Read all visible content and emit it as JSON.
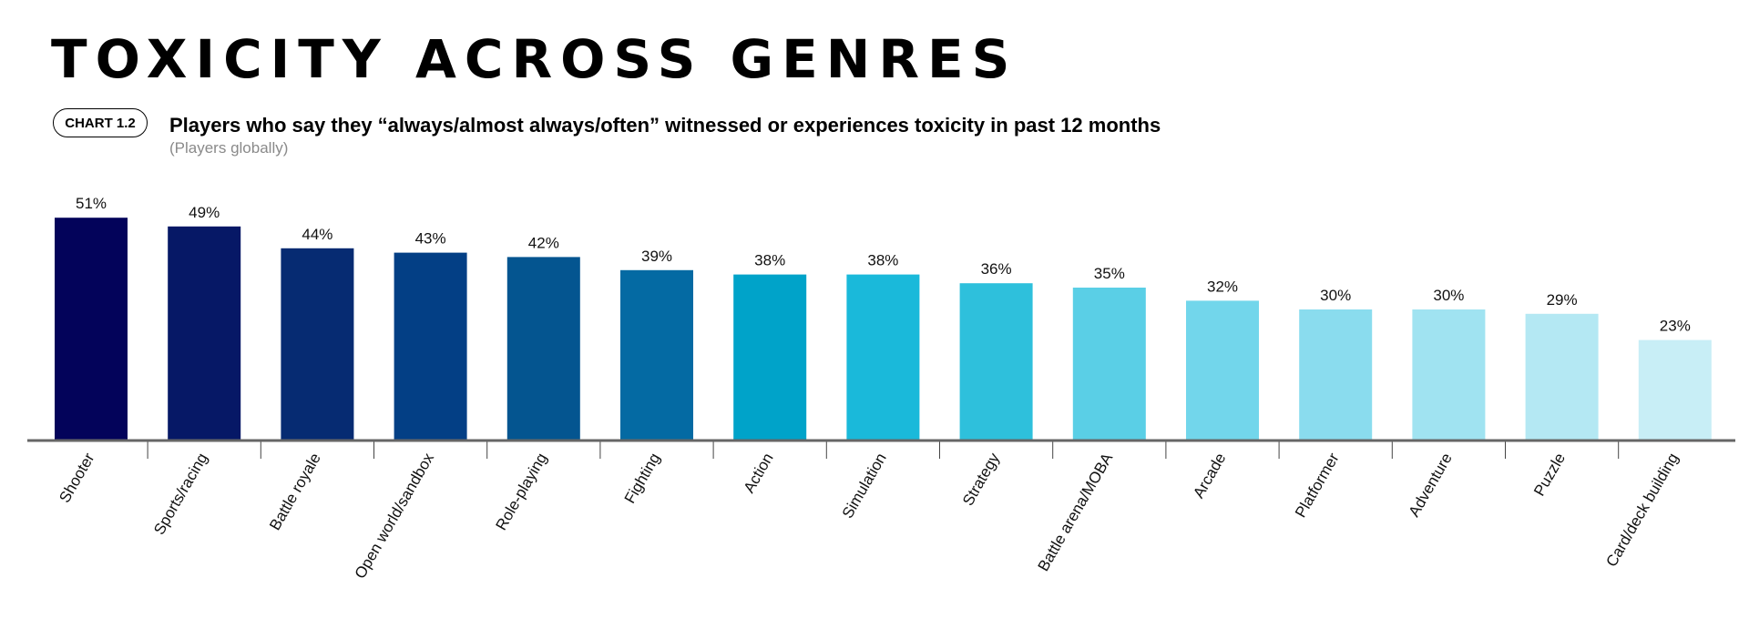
{
  "chart_data": {
    "type": "bar",
    "title": "TOXICITY ACROSS GENRES",
    "badge": "CHART 1.2",
    "subtitle": "Players who say they “always/almost always/often” witnessed or experiences toxicity in past 12 months",
    "note": "(Players globally)",
    "xlabel": "",
    "ylabel": "",
    "ylim": [
      0,
      100
    ],
    "grid": false,
    "categories": [
      "Shooter",
      "Sports/racing",
      "Battle royale",
      "Open world/sandbox",
      "Role-playing",
      "Fighting",
      "Action",
      "Simulation",
      "Strategy",
      "Battle arena/MOBA",
      "Arcade",
      "Platformer",
      "Adventure",
      "Puzzle",
      "Card/deck building"
    ],
    "values": [
      51,
      49,
      44,
      43,
      42,
      39,
      38,
      38,
      36,
      35,
      32,
      30,
      30,
      29,
      23
    ],
    "value_labels": [
      "51%",
      "49%",
      "44%",
      "43%",
      "42%",
      "39%",
      "38%",
      "38%",
      "36%",
      "35%",
      "32%",
      "30%",
      "30%",
      "29%",
      "23%"
    ],
    "colors": [
      "#03035a",
      "#061866",
      "#062b72",
      "#033f85",
      "#045590",
      "#046aa3",
      "#00a3c9",
      "#1ab9da",
      "#2ec0dc",
      "#5acfe6",
      "#72d6eb",
      "#8adcee",
      "#a0e3f1",
      "#b4e8f3",
      "#c8eef6"
    ]
  }
}
